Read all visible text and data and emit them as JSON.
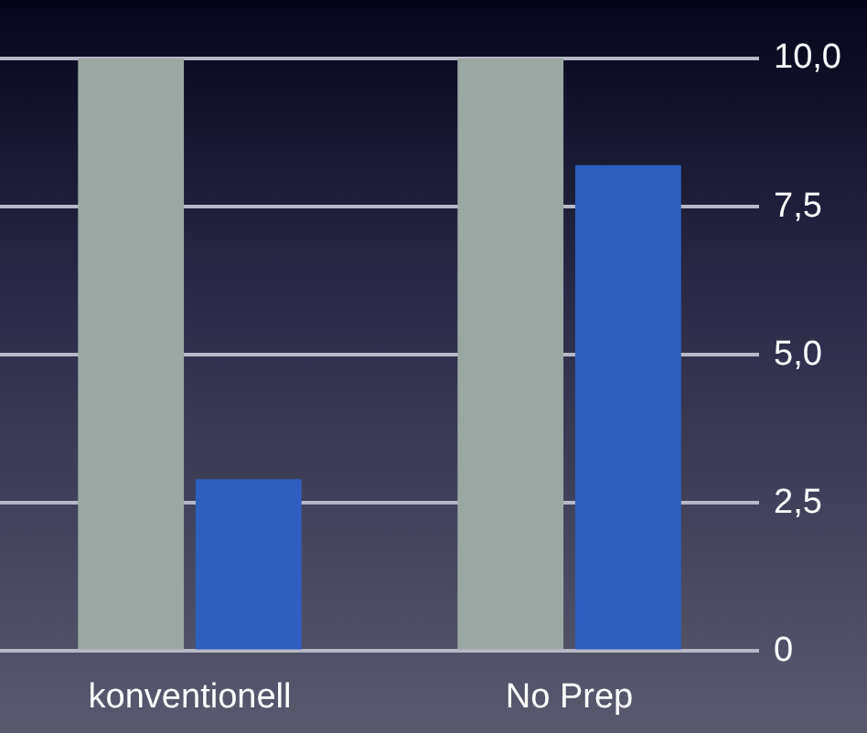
{
  "chart_data": {
    "type": "bar",
    "categories": [
      "konventionell",
      "No Prep"
    ],
    "series": [
      {
        "color": "#9ba7a2",
        "values": [
          10,
          10
        ]
      },
      {
        "color": "#2f5ec0",
        "values": [
          2.9,
          8.2
        ]
      }
    ],
    "ylim": [
      0,
      10
    ],
    "yticks": [
      {
        "value": 0,
        "label": "0"
      },
      {
        "value": 2.5,
        "label": "2,5"
      },
      {
        "value": 5,
        "label": "5,0"
      },
      {
        "value": 7.5,
        "label": "7,5"
      },
      {
        "value": 10,
        "label": "10,0"
      }
    ],
    "grid": "y",
    "legend": false
  }
}
